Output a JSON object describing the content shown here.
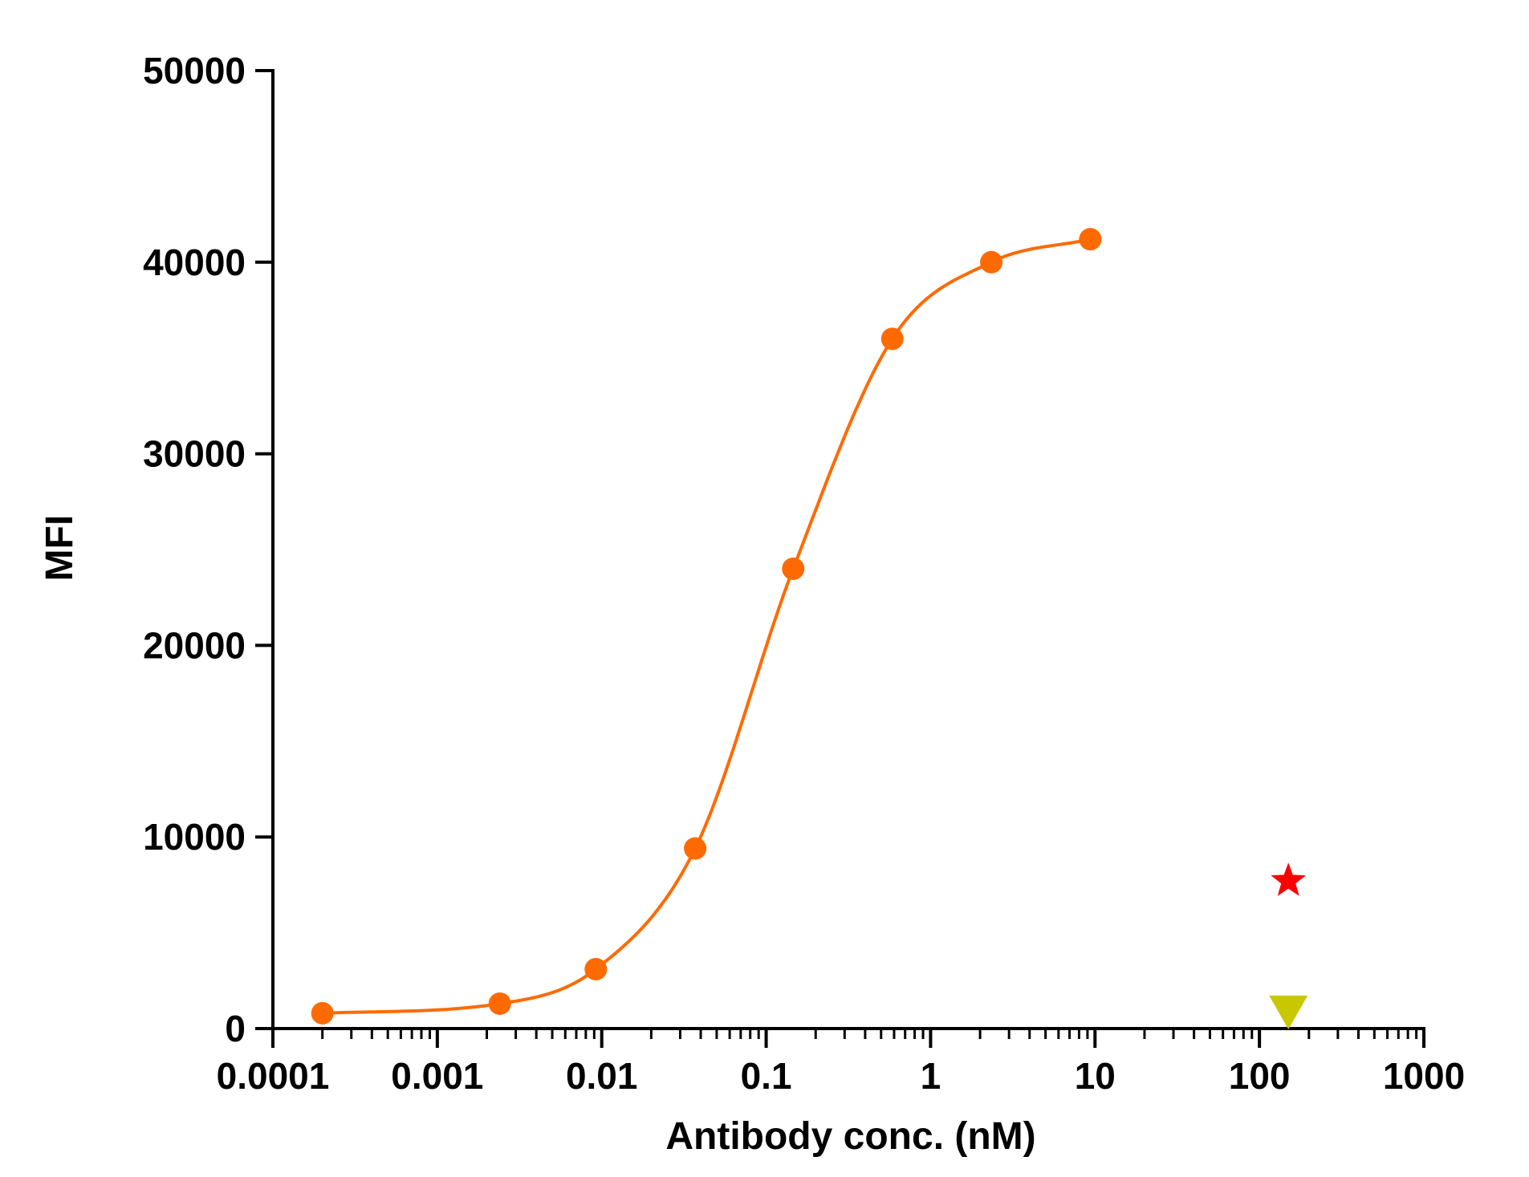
{
  "chart_data": {
    "type": "scatter",
    "title": "",
    "xlabel": "Antibody conc. (nM)",
    "ylabel": "MFI",
    "x_scale": "log",
    "xlim": [
      0.0001,
      1000
    ],
    "ylim": [
      0,
      50000
    ],
    "x_ticks": [
      "0.0001",
      "0.001",
      "0.01",
      "0.1",
      "1",
      "10",
      "100",
      "1000"
    ],
    "y_ticks": [
      "0",
      "10000",
      "20000",
      "30000",
      "40000",
      "50000"
    ],
    "grid": false,
    "series": [
      {
        "marker": "circle",
        "color": "#ff6a00",
        "fit": "sigmoidal",
        "x": [
          0.0002,
          0.0024,
          0.0092,
          0.037,
          0.146,
          0.585,
          2.34,
          9.36
        ],
        "y": [
          800,
          1300,
          3100,
          9400,
          24000,
          36000,
          40000,
          41200
        ]
      },
      {
        "marker": "star",
        "color": "#ff0000",
        "x": [
          150
        ],
        "y": [
          7700
        ]
      },
      {
        "marker": "triangle-down",
        "color": "#c8c800",
        "x": [
          150
        ],
        "y": [
          800
        ]
      }
    ]
  }
}
